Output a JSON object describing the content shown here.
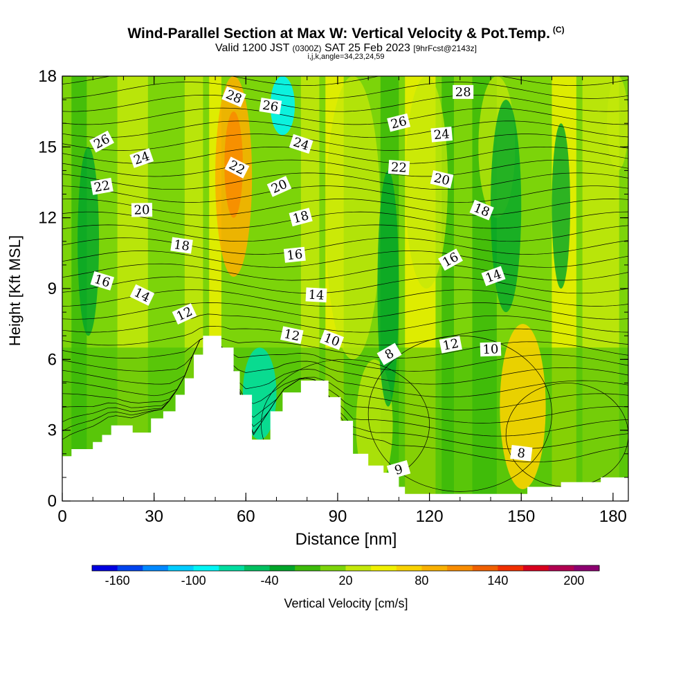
{
  "header": {
    "title": "Wind-Parallel Section at Max W: Vertical Velocity & Pot.Temp.",
    "copyright": "(C)",
    "valid_prefix": "Valid 1200 JST",
    "valid_utc": "(0300Z)",
    "valid_date": "SAT 25 Feb 2023",
    "forecast": "[9hrFcst@2143z]",
    "indices": "i,j,k,angle=34,23,24,59"
  },
  "chart_data": {
    "type": "heatmap",
    "title": "Wind-Parallel Section at Max W: Vertical Velocity & Pot.Temp.",
    "xlabel": "Distance [nm]",
    "ylabel": "Height [Kft MSL]",
    "xlim": [
      0,
      185
    ],
    "ylim": [
      0,
      18
    ],
    "x_ticks": [
      "0",
      "30",
      "60",
      "90",
      "120",
      "150",
      "180"
    ],
    "y_ticks": [
      "0",
      "3",
      "6",
      "9",
      "12",
      "15",
      "18"
    ],
    "colorbar": {
      "label": "Vertical Velocity [cm/s]",
      "tick_labels": [
        "-160",
        "-100",
        "-40",
        "20",
        "80",
        "140",
        "200"
      ],
      "tick_values": [
        -160,
        -100,
        -40,
        20,
        80,
        140,
        200
      ],
      "levels": [
        -180,
        -160,
        -140,
        -120,
        -100,
        -80,
        -60,
        -40,
        -20,
        0,
        20,
        40,
        60,
        80,
        100,
        120,
        140,
        160,
        180,
        200,
        220
      ],
      "colors": [
        "#0000e0",
        "#0044ee",
        "#0088ff",
        "#00ccff",
        "#00f5f5",
        "#00dda0",
        "#00c060",
        "#00a52a",
        "#3cba0a",
        "#7cd40a",
        "#c4e80a",
        "#f0f000",
        "#f8d200",
        "#f8b000",
        "#f88c00",
        "#f06000",
        "#f03000",
        "#d8001e",
        "#b00050",
        "#8c0070"
      ]
    },
    "terrain_profile": [
      [
        0,
        1.9
      ],
      [
        3,
        2.2
      ],
      [
        10,
        2.5
      ],
      [
        13,
        2.8
      ],
      [
        16,
        3.2
      ],
      [
        23,
        2.9
      ],
      [
        29,
        3.5
      ],
      [
        33,
        3.8
      ],
      [
        37,
        4.5
      ],
      [
        40,
        5.2
      ],
      [
        43,
        6.2
      ],
      [
        46,
        7.0
      ],
      [
        52,
        6.5
      ],
      [
        56,
        5.5
      ],
      [
        58,
        4.5
      ],
      [
        62,
        2.6
      ],
      [
        68,
        3.8
      ],
      [
        72,
        4.6
      ],
      [
        78,
        5.1
      ],
      [
        82,
        5.1
      ],
      [
        87,
        4.4
      ],
      [
        91,
        3.4
      ],
      [
        95,
        2.0
      ],
      [
        100,
        1.5
      ],
      [
        105,
        1.2
      ],
      [
        110,
        0.6
      ],
      [
        112,
        0.3
      ],
      [
        147,
        0.3
      ],
      [
        152,
        0.6
      ],
      [
        163,
        0.8
      ],
      [
        176,
        1.0
      ],
      [
        185,
        1.0
      ]
    ],
    "velocity_regions": [
      {
        "name": "updraft-28-22",
        "x": [
          50,
          62
        ],
        "y": [
          9.5,
          18
        ],
        "w_cm_s": 80
      },
      {
        "name": "updraft-core",
        "x": [
          53,
          59
        ],
        "y": [
          12,
          16.5
        ],
        "w_cm_s": 100
      },
      {
        "name": "downdraft-top",
        "x": [
          68,
          76
        ],
        "y": [
          15.5,
          18
        ],
        "w_cm_s": -100
      },
      {
        "name": "downdraft-lee",
        "x": [
          59,
          70
        ],
        "y": [
          2.6,
          6.5
        ],
        "w_cm_s": -80
      },
      {
        "name": "updraft-150",
        "x": [
          143,
          158
        ],
        "y": [
          0.5,
          7.5
        ],
        "w_cm_s": 60
      }
    ],
    "theta_contours": [
      {
        "label": "8",
        "x": 107,
        "y": 6.2
      },
      {
        "label": "8",
        "x": 150,
        "y": 2.0
      },
      {
        "label": "9",
        "x": 110,
        "y": 1.3
      },
      {
        "label": "10",
        "x": 88,
        "y": 6.8
      },
      {
        "label": "10",
        "x": 140,
        "y": 6.4
      },
      {
        "label": "12",
        "x": 40,
        "y": 7.9
      },
      {
        "label": "12",
        "x": 75,
        "y": 7.0
      },
      {
        "label": "12",
        "x": 127,
        "y": 6.6
      },
      {
        "label": "14",
        "x": 26,
        "y": 8.7
      },
      {
        "label": "14",
        "x": 83,
        "y": 8.7
      },
      {
        "label": "14",
        "x": 141,
        "y": 9.5
      },
      {
        "label": "16",
        "x": 13,
        "y": 9.3
      },
      {
        "label": "16",
        "x": 76,
        "y": 10.4
      },
      {
        "label": "16",
        "x": 127,
        "y": 10.2
      },
      {
        "label": "18",
        "x": 39,
        "y": 10.8
      },
      {
        "label": "18",
        "x": 78,
        "y": 12.0
      },
      {
        "label": "18",
        "x": 137,
        "y": 12.3
      },
      {
        "label": "20",
        "x": 26,
        "y": 12.3
      },
      {
        "label": "20",
        "x": 71,
        "y": 13.3
      },
      {
        "label": "20",
        "x": 124,
        "y": 13.6
      },
      {
        "label": "22",
        "x": 13,
        "y": 13.3
      },
      {
        "label": "22",
        "x": 57,
        "y": 14.1
      },
      {
        "label": "22",
        "x": 110,
        "y": 14.1
      },
      {
        "label": "24",
        "x": 26,
        "y": 14.5
      },
      {
        "label": "24",
        "x": 78,
        "y": 15.1
      },
      {
        "label": "24",
        "x": 124,
        "y": 15.5
      },
      {
        "label": "26",
        "x": 13,
        "y": 15.2
      },
      {
        "label": "26",
        "x": 68,
        "y": 16.7
      },
      {
        "label": "26",
        "x": 110,
        "y": 16.0
      },
      {
        "label": "28",
        "x": 56,
        "y": 17.1
      },
      {
        "label": "28",
        "x": 131,
        "y": 17.3
      }
    ]
  }
}
